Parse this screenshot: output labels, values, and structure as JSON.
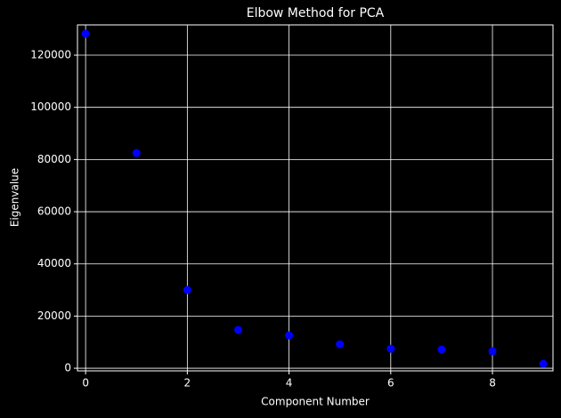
{
  "chart_data": {
    "type": "scatter",
    "title": "Elbow Method for PCA",
    "x_label": "Component Number",
    "y_label": "Eigenvalue",
    "x": [
      0,
      1,
      2,
      3,
      4,
      5,
      6,
      7,
      8,
      9
    ],
    "values": [
      128200,
      82500,
      30000,
      14700,
      12600,
      9200,
      7500,
      7200,
      6500,
      1700
    ],
    "color": "#0000ff",
    "xlim": [
      -0.16,
      9.19
    ],
    "xticks": [
      0,
      2,
      4,
      6,
      8
    ],
    "ylim": [
      -1000,
      131600
    ],
    "yticks": [
      0,
      20000,
      40000,
      60000,
      80000,
      100000,
      120000
    ],
    "grid": true
  }
}
